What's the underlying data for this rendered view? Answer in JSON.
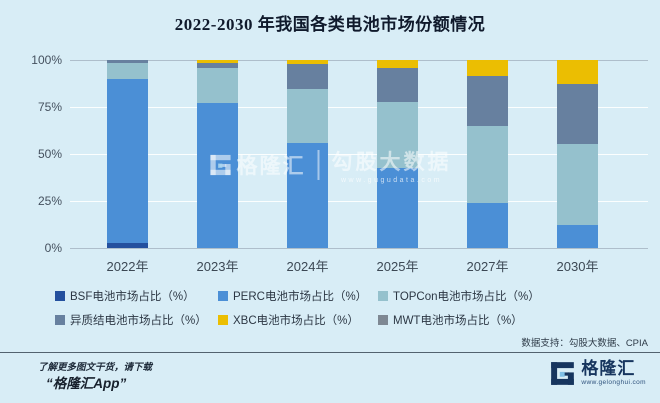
{
  "title": "2022-2030 年我国各类电池市场份额情况",
  "chart_data": {
    "type": "bar",
    "stacked": true,
    "title": "2022-2030 年我国各类电池市场份额情况",
    "categories": [
      "2022年",
      "2023年",
      "2024年",
      "2025年",
      "2027年",
      "2030年"
    ],
    "series": [
      {
        "name": "BSF电池市场占比（%）",
        "color": "#24509e",
        "values": [
          2.5,
          0,
          0,
          0,
          0,
          0
        ]
      },
      {
        "name": "PERC电池市场占比（%）",
        "color": "#4b8fd6",
        "values": [
          87.5,
          77,
          56,
          42.5,
          24,
          12.5
        ]
      },
      {
        "name": "TOPCon电池市场占比（%）",
        "color": "#95c1cd",
        "values": [
          8.5,
          19,
          28.5,
          35,
          41,
          43
        ]
      },
      {
        "name": "异质结电池市场占比（%）",
        "color": "#67809f",
        "values": [
          1.5,
          2.5,
          13.5,
          18,
          26.5,
          31.5
        ]
      },
      {
        "name": "XBC电池市场占比（%）",
        "color": "#ebbe02",
        "values": [
          0,
          1.5,
          2,
          4.5,
          8.5,
          13
        ]
      },
      {
        "name": "MWT电池市场占比（%）",
        "color": "#7e8893",
        "values": [
          0,
          0,
          0,
          0,
          0,
          0
        ]
      }
    ],
    "y_ticks": [
      {
        "label": "100%",
        "value": 100
      },
      {
        "label": "75%",
        "value": 75
      },
      {
        "label": "50%",
        "value": 50
      },
      {
        "label": "25%",
        "value": 25
      },
      {
        "label": "0%",
        "value": 0
      }
    ],
    "ylim": [
      0,
      100
    ],
    "grid": true,
    "legend_position": "bottom"
  },
  "watermark": {
    "brand": "格隆汇",
    "partner": "勾股大数据",
    "partner_url": "www.gugudata.com"
  },
  "footer": {
    "data_support": "数据支持：勾股大数据、CPIA",
    "promo_line1": "了解更多图文干货，请下载",
    "promo_line2": "“格隆汇App”",
    "brand_name": "格隆汇",
    "brand_url": "www.gelonghui.com"
  }
}
